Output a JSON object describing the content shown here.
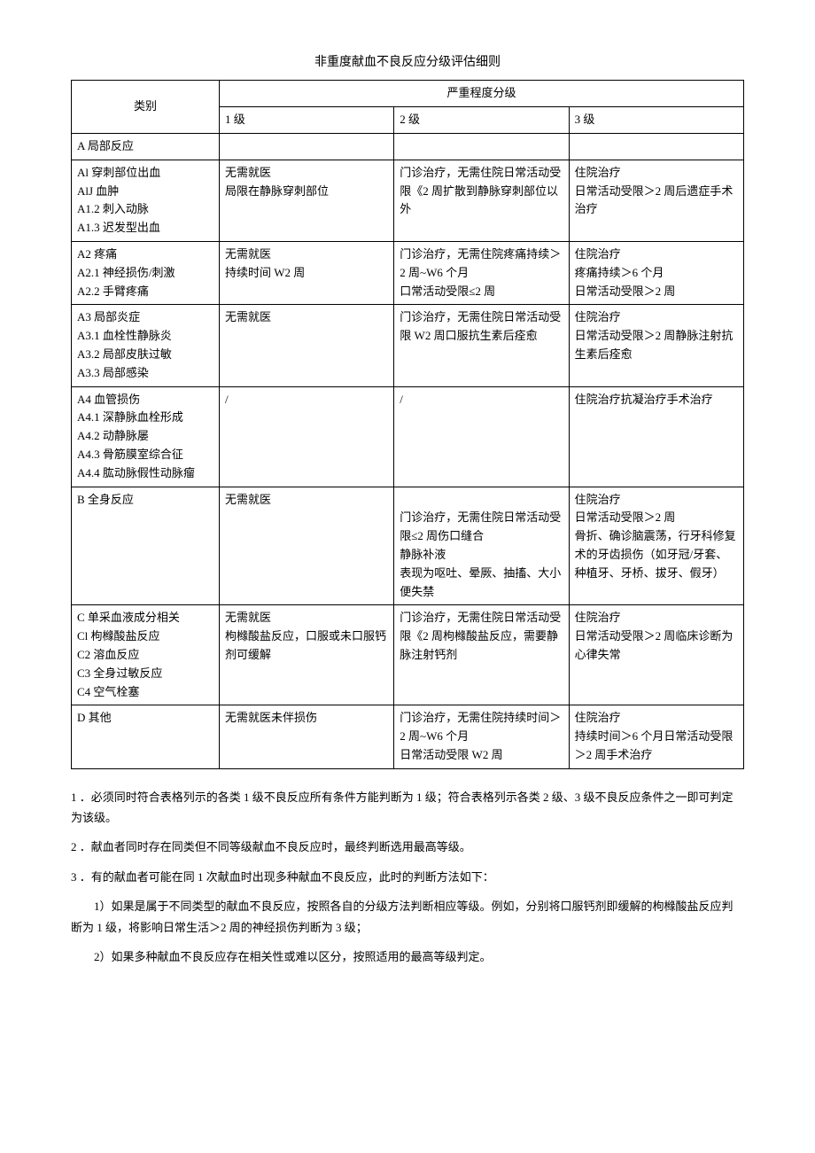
{
  "title": "非重度献血不良反应分级评估细则",
  "headers": {
    "category": "类别",
    "severity": "严重程度分级",
    "lvl1": "1 级",
    "lvl2": "2 级",
    "lvl3": "3 级"
  },
  "rows": {
    "a": {
      "cat": "A 局部反应",
      "l1": "",
      "l2": "",
      "l3": ""
    },
    "a1": {
      "cat": "Al 穿刺部位出血\nAlJ 血肿\nA1.2 刺入动脉\nA1.3 迟发型出血",
      "l1": "无需就医\n局限在静脉穿刺部位",
      "l2": "门诊治疗，无需住院日常活动受限《2 周扩散到静脉穿刺部位以外",
      "l3": "住院治疗\n日常活动受限＞2 周后遗症手术治疗"
    },
    "a2": {
      "cat": "A2 疼痛\nA2.1 神经损伤/刺激\nA2.2 手臂疼痛",
      "l1": "无需就医\n持续时间 W2 周",
      "l2": "门诊治疗，无需住院疼痛持续＞2 周~W6 个月\n口常活动受限≤2 周",
      "l3": "住院治疗\n疼痛持续＞6 个月\n日常活动受限＞2 周"
    },
    "a3": {
      "cat": "A3 局部炎症\nA3.1 血栓性静脉炎\nA3.2 局部皮肤过敏\nA3.3 局部感染",
      "l1": "无需就医",
      "l2": "门诊治疗，无需住院日常活动受限 W2 周口服抗生素后痊愈",
      "l3": "住院治疗\n日常活动受限＞2 周静脉注射抗生素后痊愈"
    },
    "a4": {
      "cat": "A4 血管损伤\nA4.1 深静脉血栓形成\nA4.2 动静脉屡\nA4.3 骨筋膜室综合征\nA4.4 肱动脉假性动脉瘤",
      "l1": "/",
      "l2": "/",
      "l3": "住院治疗抗凝治疗手术治疗"
    },
    "b": {
      "cat": "B 全身反应",
      "l1": "无需就医",
      "l2": "\n门诊治疗，无需住院日常活动受限≤2 周伤口缝合\n静脉补液\n表现为呕吐、晕厥、抽搐、大小便失禁",
      "l3": "住院治疗\n日常活动受限＞2 周\n骨折、确诊脑震荡，行牙科修复术的牙齿损伤（如牙冠/牙套、种植牙、牙桥、拔牙、假牙）"
    },
    "c": {
      "cat": "C 单采血液成分相关\nCl 枸橼酸盐反应\nC2 溶血反应\nC3 全身过敏反应\nC4 空气栓塞",
      "l1": "无需就医\n枸橼酸盐反应，口服或未口服钙剂可缓解",
      "l2": "门诊治疗，无需住院日常活动受限《2 周枸橼酸盐反应，需要静脉注射钙剂",
      "l3": "住院治疗\n日常活动受限＞2 周临床诊断为心律失常"
    },
    "d": {
      "cat": "D 其他",
      "l1": "无需就医未伴损伤",
      "l2": "门诊治疗，无需住院持续时间＞2 周~W6 个月\n日常活动受限 W2 周",
      "l3": "住院治疗\n持续时间＞6 个月日常活动受限＞2 周手术治疗"
    }
  },
  "notes": {
    "n1": "1 ．必须同时符合表格列示的各类 1 级不良反应所有条件方能判断为 1 级；符合表格列示各类 2 级、3 级不良反应条件之一即可判定为该级。",
    "n2": "2 ．献血者同时存在同类但不同等级献血不良反应时，最终判断选用最高等级。",
    "n3": "3 ．有的献血者可能在同 1 次献血时出现多种献血不良反应，此时的判断方法如下：",
    "n3a": "1）如果是属于不同类型的献血不良反应，按照各自的分级方法判断相应等级。例如，分别将口服钙剂即缓解的枸橼酸盐反应判断为 1 级，将影响日常生活＞2 周的神经损伤判断为 3 级；",
    "n3b": "2）如果多种献血不良反应存在相关性或难以区分，按照适用的最高等级判定。"
  }
}
